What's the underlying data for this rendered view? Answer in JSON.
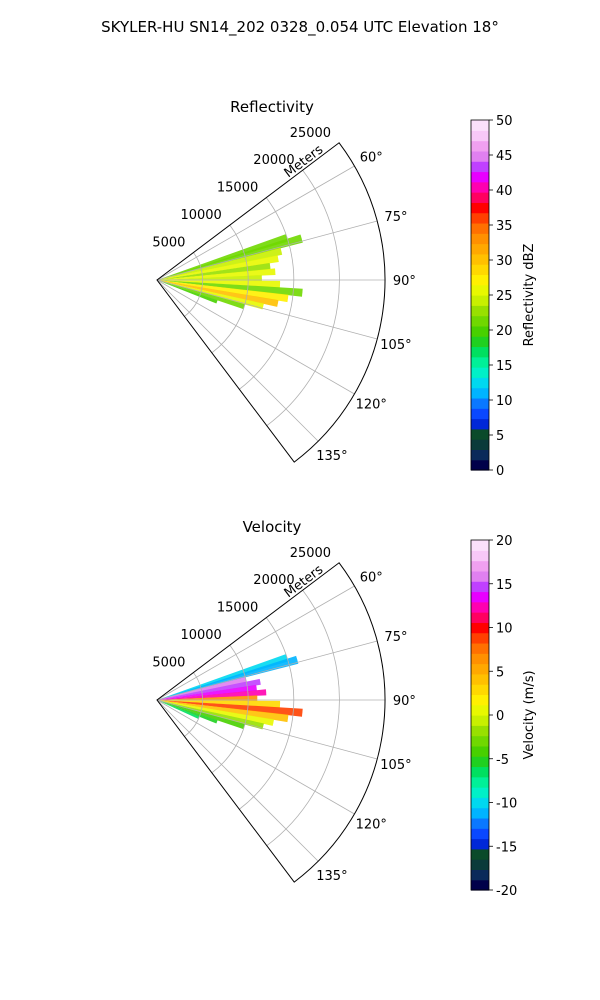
{
  "suptitle": "SKYLER-HU  SN14_202  0328_0.054 UTC Elevation 18°",
  "chart_data": [
    {
      "type": "heatmap",
      "projection": "polar sector",
      "title": "Reflectivity",
      "range_label": "Meters",
      "r_ticks": [
        5000,
        10000,
        15000,
        20000,
        25000
      ],
      "r_max": 25000,
      "theta_ticks": [
        "60°",
        "75°",
        "90°",
        "105°",
        "120°",
        "135°"
      ],
      "theta_range_deg": [
        53,
        143
      ],
      "grid": true,
      "colorbar": {
        "label": "Reflectivity dBZ",
        "min": 0,
        "max": 50,
        "ticks": [
          0,
          5,
          10,
          15,
          20,
          25,
          30,
          35,
          40,
          45,
          50
        ],
        "colors": [
          "#00004a",
          "#0a2a5a",
          "#0a3a3a",
          "#0a4a2a",
          "#0028d8",
          "#0a48ff",
          "#0a78ff",
          "#00b4ff",
          "#00d8f0",
          "#00f0c8",
          "#00f098",
          "#00e060",
          "#20d020",
          "#48d000",
          "#70d800",
          "#98e000",
          "#c8f000",
          "#e8f800",
          "#fff000",
          "#ffd800",
          "#ffc000",
          "#ffa800",
          "#ff9000",
          "#ff7000",
          "#ff4000",
          "#ff0000",
          "#ff0060",
          "#ff00b0",
          "#e800ff",
          "#c040ff",
          "#e080f0",
          "#f0a0f0",
          "#f8c8f8",
          "#fce0fc"
        ]
      },
      "rays": [
        {
          "angle": 72,
          "r_max": 15000,
          "value": 22
        },
        {
          "angle": 74,
          "r_max": 16500,
          "value": 21
        },
        {
          "angle": 77,
          "r_max": 14000,
          "value": 24
        },
        {
          "angle": 80,
          "r_max": 13500,
          "value": 25
        },
        {
          "angle": 83,
          "r_max": 12500,
          "value": 23
        },
        {
          "angle": 86,
          "r_max": 13000,
          "value": 26
        },
        {
          "angle": 89,
          "r_max": 11500,
          "value": 24
        },
        {
          "angle": 92,
          "r_max": 13500,
          "value": 25
        },
        {
          "angle": 95,
          "r_max": 16000,
          "value": 22
        },
        {
          "angle": 98,
          "r_max": 14500,
          "value": 27
        },
        {
          "angle": 101,
          "r_max": 13500,
          "value": 30
        },
        {
          "angle": 104,
          "r_max": 12000,
          "value": 26
        },
        {
          "angle": 107,
          "r_max": 10000,
          "value": 22
        },
        {
          "angle": 110,
          "r_max": 7000,
          "value": 20
        }
      ]
    },
    {
      "type": "heatmap",
      "projection": "polar sector",
      "title": "Velocity",
      "range_label": "Meters",
      "r_ticks": [
        5000,
        10000,
        15000,
        20000,
        25000
      ],
      "r_max": 25000,
      "theta_ticks": [
        "60°",
        "75°",
        "90°",
        "105°",
        "120°",
        "135°"
      ],
      "theta_range_deg": [
        53,
        143
      ],
      "grid": true,
      "colorbar": {
        "label": "Velocity (m/s)",
        "min": -20,
        "max": 20,
        "ticks": [
          -20,
          -15,
          -10,
          -5,
          0,
          5,
          10,
          15,
          20
        ],
        "colors": [
          "#00004a",
          "#0a2a5a",
          "#0a3a3a",
          "#0a4a2a",
          "#0028d8",
          "#0a48ff",
          "#0a78ff",
          "#00b4ff",
          "#00d8f0",
          "#00f0c8",
          "#00f098",
          "#00e060",
          "#20d020",
          "#48d000",
          "#70d800",
          "#98e000",
          "#c8f000",
          "#e8f800",
          "#fff000",
          "#ffd800",
          "#ffc000",
          "#ffa800",
          "#ff9000",
          "#ff7000",
          "#ff4000",
          "#ff0000",
          "#ff0060",
          "#ff00b0",
          "#e800ff",
          "#c040ff",
          "#e080f0",
          "#f0a0f0",
          "#f8c8f8",
          "#fce0fc"
        ]
      },
      "rays": [
        {
          "angle": 72,
          "r_max": 15000,
          "value": -10
        },
        {
          "angle": 74,
          "r_max": 16000,
          "value": -11
        },
        {
          "angle": 77,
          "r_max": 10000,
          "value": 16
        },
        {
          "angle": 80,
          "r_max": 11500,
          "value": 15
        },
        {
          "angle": 83,
          "r_max": 11000,
          "value": 13
        },
        {
          "angle": 86,
          "r_max": 12000,
          "value": 12
        },
        {
          "angle": 89,
          "r_max": 11000,
          "value": 6
        },
        {
          "angle": 92,
          "r_max": 13500,
          "value": 3
        },
        {
          "angle": 95,
          "r_max": 16000,
          "value": 9
        },
        {
          "angle": 98,
          "r_max": 14500,
          "value": 4
        },
        {
          "angle": 101,
          "r_max": 13000,
          "value": 1
        },
        {
          "angle": 104,
          "r_max": 12000,
          "value": -2
        },
        {
          "angle": 107,
          "r_max": 10000,
          "value": -4
        },
        {
          "angle": 110,
          "r_max": 7000,
          "value": -5
        },
        {
          "angle": 113,
          "r_max": 5000,
          "value": -6
        }
      ]
    }
  ]
}
